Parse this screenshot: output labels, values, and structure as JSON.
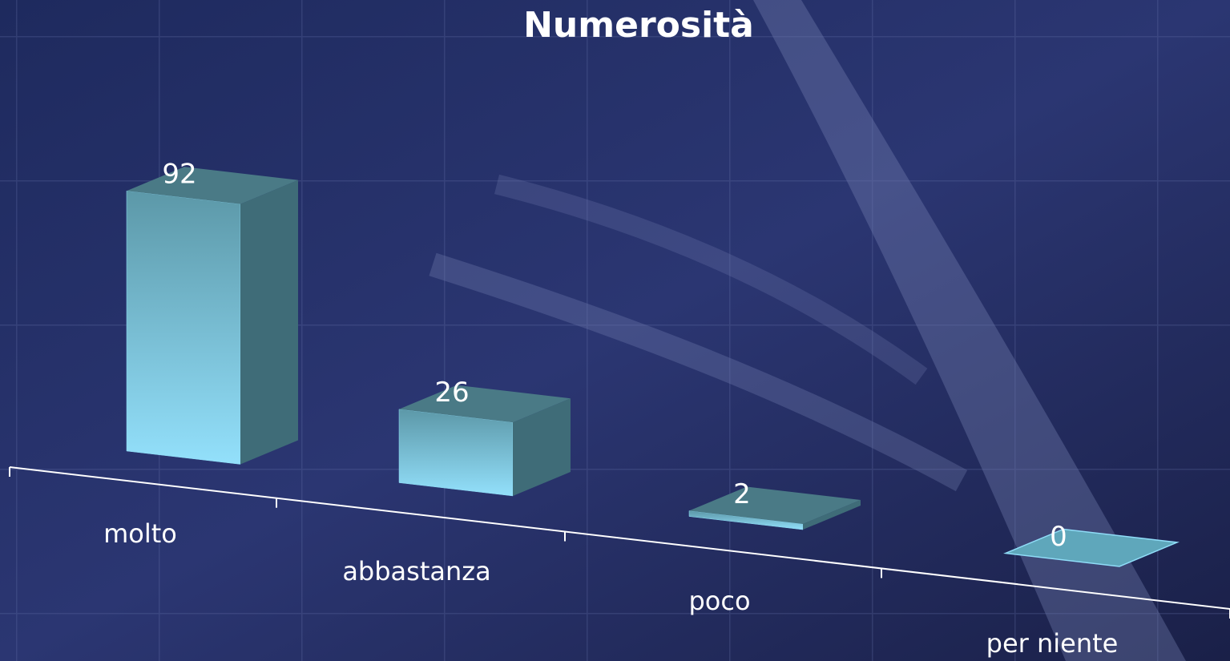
{
  "chart_data": {
    "type": "bar3d",
    "title": "Numerosità",
    "categories": [
      "molto",
      "abbastanza",
      "poco",
      "per niente"
    ],
    "values": [
      92,
      26,
      2,
      0
    ],
    "color": "#8fdcf7"
  }
}
